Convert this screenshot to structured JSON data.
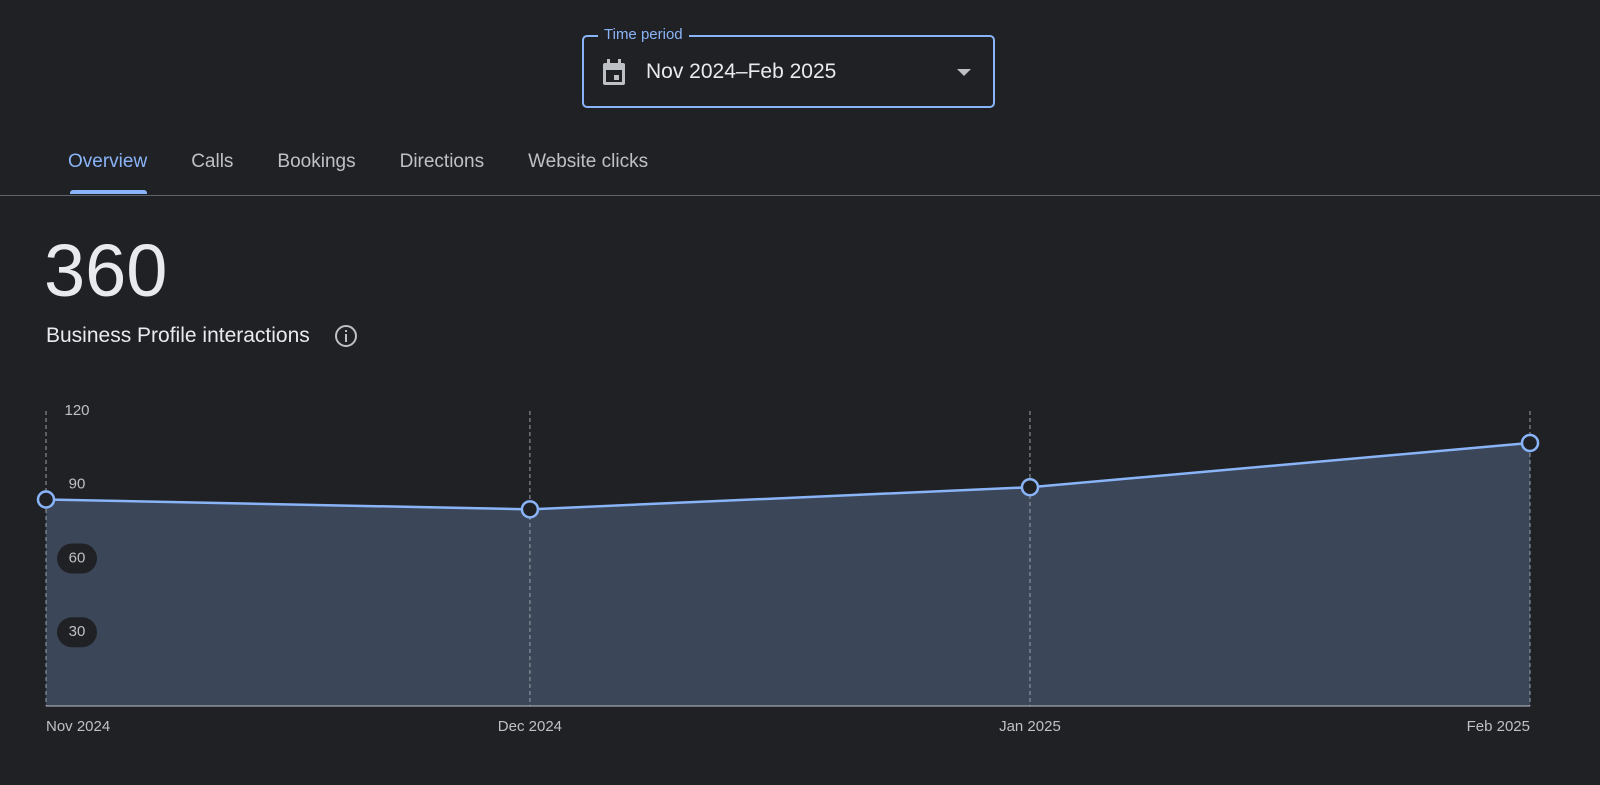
{
  "time_period": {
    "label": "Time period",
    "value": "Nov 2024–Feb 2025"
  },
  "tabs": [
    "Overview",
    "Calls",
    "Bookings",
    "Directions",
    "Website clicks"
  ],
  "metric": {
    "value": 360,
    "label": "Business Profile interactions"
  },
  "chart_data": {
    "type": "area",
    "x": [
      "Nov 2024",
      "Dec 2024",
      "Jan 2025",
      "Feb 2025"
    ],
    "values": [
      84,
      80,
      89,
      107
    ],
    "color": "#8ab4f8",
    "fill": "#3b4659",
    "ylim": [
      0,
      120
    ],
    "yticks": [
      30,
      60,
      90,
      120
    ],
    "grid": true
  }
}
